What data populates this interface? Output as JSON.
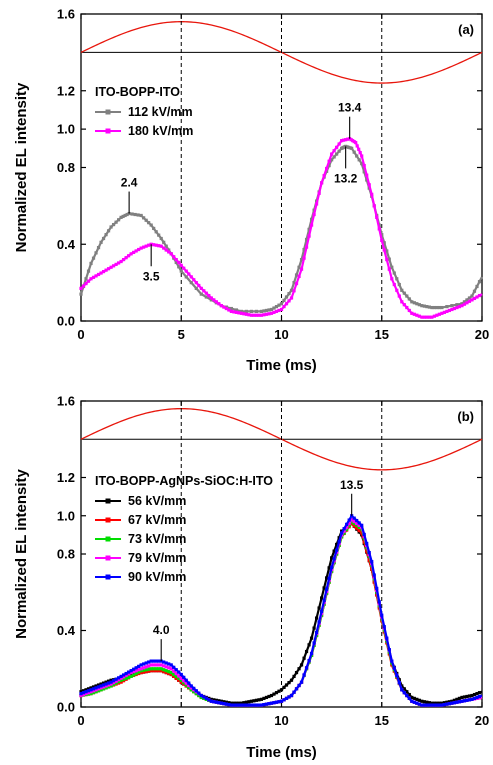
{
  "chart_data": [
    {
      "type": "line",
      "panel_label": "(a)",
      "xlabel": "Time (ms)",
      "ylabel": "Normalized EL intensity",
      "xlim": [
        0,
        20
      ],
      "ylim": [
        0,
        1.6
      ],
      "x_ticks": [
        "0",
        "5",
        "10",
        "15",
        "20"
      ],
      "y_ticks": [
        "0.0",
        "0.4",
        "0.8",
        "1.0",
        "1.2",
        "1.6"
      ],
      "legend_title": "ITO-BOPP-ITO",
      "legend_position": "upper-left",
      "voltage_waveform": "sinusoid, period 20 ms, centered at 1.4, max at 5 ms, min at 15 ms",
      "vertical_reference_lines_x": [
        5,
        10,
        15
      ],
      "series": [
        {
          "name": "112 kV/mm",
          "color": "#808080",
          "x": [
            0,
            0.5,
            1,
            1.5,
            2,
            2.4,
            3,
            3.5,
            4,
            4.5,
            5,
            6,
            7,
            8,
            9,
            9.5,
            10,
            10.5,
            11,
            11.5,
            12,
            12.5,
            13,
            13.2,
            13.5,
            14,
            14.5,
            15,
            15.5,
            16,
            16.5,
            17,
            17.5,
            18,
            19,
            19.5,
            20
          ],
          "y": [
            0.14,
            0.3,
            0.41,
            0.49,
            0.54,
            0.56,
            0.55,
            0.5,
            0.43,
            0.35,
            0.26,
            0.14,
            0.08,
            0.05,
            0.05,
            0.06,
            0.09,
            0.16,
            0.32,
            0.53,
            0.72,
            0.84,
            0.9,
            0.91,
            0.9,
            0.82,
            0.65,
            0.45,
            0.28,
            0.16,
            0.1,
            0.08,
            0.07,
            0.07,
            0.09,
            0.13,
            0.23
          ]
        },
        {
          "name": "180 kV/mm",
          "color": "#ff00ff",
          "x": [
            0,
            0.5,
            1,
            1.5,
            2,
            2.5,
            3,
            3.5,
            4,
            4.5,
            5,
            5.5,
            6,
            6.5,
            7,
            7.5,
            8,
            8.5,
            9,
            9.5,
            10,
            10.5,
            11,
            11.5,
            12,
            12.5,
            13,
            13.4,
            13.7,
            14,
            14.5,
            15,
            15.5,
            16,
            16.5,
            17,
            17.5,
            18,
            18.5,
            19,
            19.5,
            20
          ],
          "y": [
            0.17,
            0.22,
            0.25,
            0.28,
            0.31,
            0.35,
            0.38,
            0.4,
            0.39,
            0.35,
            0.29,
            0.23,
            0.17,
            0.12,
            0.08,
            0.05,
            0.04,
            0.03,
            0.03,
            0.04,
            0.06,
            0.12,
            0.27,
            0.5,
            0.72,
            0.87,
            0.94,
            0.95,
            0.93,
            0.86,
            0.66,
            0.42,
            0.22,
            0.1,
            0.04,
            0.02,
            0.02,
            0.04,
            0.06,
            0.08,
            0.11,
            0.14
          ]
        }
      ],
      "annotations": [
        {
          "text": "2.4",
          "x": 2.4,
          "y": 0.56,
          "label_side": "above"
        },
        {
          "text": "3.5",
          "x": 3.5,
          "y": 0.4,
          "label_side": "below"
        },
        {
          "text": "13.4",
          "x": 13.4,
          "y": 0.95,
          "label_side": "above"
        },
        {
          "text": "13.2",
          "x": 13.2,
          "y": 0.91,
          "label_side": "below"
        }
      ]
    },
    {
      "type": "line",
      "panel_label": "(b)",
      "xlabel": "Time (ms)",
      "ylabel": "Normalized EL intensity",
      "xlim": [
        0,
        20
      ],
      "ylim": [
        0,
        1.6
      ],
      "x_ticks": [
        "0",
        "5",
        "10",
        "15",
        "20"
      ],
      "y_ticks": [
        "0.0",
        "0.4",
        "0.8",
        "1.0",
        "1.2",
        "1.6"
      ],
      "legend_title": "ITO-BOPP-AgNPs-SiOC:H-ITO",
      "legend_position": "upper-left",
      "voltage_waveform": "sinusoid, period 20 ms, centered at 1.4, max at 5 ms, min at 15 ms",
      "vertical_reference_lines_x": [
        5,
        10,
        15
      ],
      "series": [
        {
          "name": "56 kV/mm",
          "color": "#000000",
          "x": [
            0,
            0.5,
            1,
            1.5,
            2,
            2.5,
            3,
            3.5,
            4,
            4.5,
            5,
            5.5,
            6,
            6.5,
            7,
            7.5,
            8,
            8.5,
            9,
            9.5,
            10,
            10.5,
            11,
            11.5,
            12,
            12.5,
            13,
            13.5,
            14,
            14.5,
            15,
            15.5,
            16,
            16.5,
            17,
            17.5,
            18,
            18.5,
            19,
            19.5,
            20
          ],
          "y": [
            0.08,
            0.1,
            0.12,
            0.14,
            0.15,
            0.17,
            0.18,
            0.19,
            0.19,
            0.17,
            0.13,
            0.09,
            0.06,
            0.04,
            0.03,
            0.02,
            0.02,
            0.03,
            0.04,
            0.06,
            0.09,
            0.14,
            0.22,
            0.36,
            0.57,
            0.78,
            0.92,
            0.96,
            0.9,
            0.72,
            0.46,
            0.24,
            0.11,
            0.05,
            0.03,
            0.02,
            0.02,
            0.03,
            0.05,
            0.06,
            0.08
          ]
        },
        {
          "name": "67 kV/mm",
          "color": "#ff0000",
          "x": [
            0,
            0.5,
            1,
            1.5,
            2,
            2.5,
            3,
            3.5,
            4,
            4.5,
            5,
            5.5,
            6,
            6.5,
            7,
            7.5,
            8,
            8.5,
            9,
            9.5,
            10,
            10.5,
            11,
            11.5,
            12,
            12.5,
            13,
            13.5,
            14,
            14.5,
            15,
            15.5,
            16,
            16.5,
            17,
            17.5,
            18,
            18.5,
            19,
            19.5,
            20
          ],
          "y": [
            0.06,
            0.07,
            0.09,
            0.11,
            0.13,
            0.16,
            0.18,
            0.19,
            0.19,
            0.17,
            0.13,
            0.09,
            0.05,
            0.03,
            0.02,
            0.01,
            0.01,
            0.01,
            0.01,
            0.02,
            0.03,
            0.06,
            0.13,
            0.27,
            0.48,
            0.71,
            0.89,
            0.96,
            0.91,
            0.72,
            0.45,
            0.22,
            0.09,
            0.03,
            0.01,
            0.01,
            0.01,
            0.02,
            0.03,
            0.04,
            0.05
          ]
        },
        {
          "name": "73 kV/mm",
          "color": "#00dd00",
          "x": [
            0,
            0.5,
            1,
            1.5,
            2,
            2.5,
            3,
            3.5,
            4,
            4.5,
            5,
            5.5,
            6,
            6.5,
            7,
            7.5,
            8,
            8.5,
            9,
            9.5,
            10,
            10.5,
            11,
            11.5,
            12,
            12.5,
            13,
            13.5,
            14,
            14.5,
            15,
            15.5,
            16,
            16.5,
            17,
            17.5,
            18,
            18.5,
            19,
            19.5,
            20
          ],
          "y": [
            0.06,
            0.07,
            0.09,
            0.11,
            0.14,
            0.16,
            0.19,
            0.2,
            0.2,
            0.18,
            0.14,
            0.09,
            0.05,
            0.03,
            0.02,
            0.01,
            0.01,
            0.01,
            0.01,
            0.02,
            0.03,
            0.06,
            0.13,
            0.27,
            0.48,
            0.71,
            0.89,
            0.97,
            0.93,
            0.74,
            0.46,
            0.23,
            0.09,
            0.03,
            0.01,
            0.01,
            0.01,
            0.02,
            0.03,
            0.04,
            0.05
          ]
        },
        {
          "name": "79 kV/mm",
          "color": "#ff00ff",
          "x": [
            0,
            0.5,
            1,
            1.5,
            2,
            2.5,
            3,
            3.5,
            4,
            4.5,
            5,
            5.5,
            6,
            6.5,
            7,
            7.5,
            8,
            8.5,
            9,
            9.5,
            10,
            10.5,
            11,
            11.5,
            12,
            12.5,
            13,
            13.5,
            14,
            14.5,
            15,
            15.5,
            16,
            16.5,
            17,
            17.5,
            18,
            18.5,
            19,
            19.5,
            20
          ],
          "y": [
            0.06,
            0.08,
            0.1,
            0.12,
            0.15,
            0.18,
            0.2,
            0.22,
            0.22,
            0.2,
            0.15,
            0.1,
            0.06,
            0.03,
            0.02,
            0.01,
            0.01,
            0.01,
            0.01,
            0.02,
            0.03,
            0.06,
            0.13,
            0.28,
            0.49,
            0.72,
            0.9,
            0.98,
            0.94,
            0.75,
            0.47,
            0.24,
            0.09,
            0.03,
            0.01,
            0.01,
            0.01,
            0.02,
            0.03,
            0.04,
            0.05
          ]
        },
        {
          "name": "90 kV/mm",
          "color": "#0000ff",
          "x": [
            0,
            0.5,
            1,
            1.5,
            2,
            2.5,
            3,
            3.5,
            4,
            4.5,
            5,
            5.5,
            6,
            6.5,
            7,
            7.5,
            8,
            8.5,
            9,
            9.5,
            10,
            10.5,
            11,
            11.5,
            12,
            12.5,
            13,
            13.5,
            14,
            14.5,
            15,
            15.5,
            16,
            16.5,
            17,
            17.5,
            18,
            18.5,
            19,
            19.5,
            20
          ],
          "y": [
            0.07,
            0.09,
            0.11,
            0.13,
            0.16,
            0.19,
            0.22,
            0.24,
            0.24,
            0.22,
            0.17,
            0.11,
            0.06,
            0.03,
            0.02,
            0.01,
            0.01,
            0.01,
            0.01,
            0.02,
            0.03,
            0.06,
            0.13,
            0.28,
            0.5,
            0.73,
            0.91,
            1.0,
            0.95,
            0.76,
            0.48,
            0.24,
            0.09,
            0.03,
            0.01,
            0.01,
            0.01,
            0.02,
            0.03,
            0.04,
            0.06
          ]
        }
      ],
      "annotations": [
        {
          "text": "4.0",
          "x": 4.0,
          "y": 0.24,
          "label_side": "above"
        },
        {
          "text": "13.5",
          "x": 13.5,
          "y": 1.0,
          "label_side": "above"
        }
      ]
    }
  ]
}
